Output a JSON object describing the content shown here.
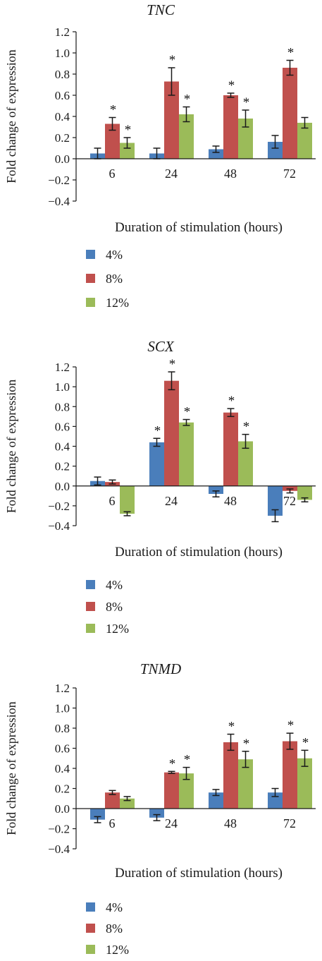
{
  "chart_data": [
    {
      "type": "bar",
      "title": "TNC",
      "xlabel": "Duration of stimulation (hours)",
      "ylabel": "Fold change of expression",
      "ylim": [
        -0.4,
        1.2
      ],
      "yticks": [
        "1.2",
        "1.0",
        "0.8",
        "0.6",
        "0.4",
        "0.2",
        "0.0",
        "−0.2",
        "−0.4"
      ],
      "categories": [
        "6",
        "24",
        "48",
        "72"
      ],
      "legend_position": "bottom-left",
      "series": [
        {
          "name": "4%",
          "color": "#4a7ebb",
          "values": [
            0.05,
            0.05,
            0.09,
            0.16
          ],
          "errors": [
            0.05,
            0.05,
            0.03,
            0.06
          ],
          "sig": [
            false,
            false,
            false,
            false
          ]
        },
        {
          "name": "8%",
          "color": "#c0504d",
          "values": [
            0.33,
            0.73,
            0.6,
            0.86
          ],
          "errors": [
            0.06,
            0.13,
            0.02,
            0.07
          ],
          "sig": [
            true,
            true,
            true,
            true
          ]
        },
        {
          "name": "12%",
          "color": "#9bbb59",
          "values": [
            0.15,
            0.42,
            0.38,
            0.34
          ],
          "errors": [
            0.05,
            0.07,
            0.08,
            0.05
          ],
          "sig": [
            true,
            true,
            true,
            false
          ]
        }
      ]
    },
    {
      "type": "bar",
      "title": "SCX",
      "xlabel": "Duration of stimulation (hours)",
      "ylabel": "Fold change of expression",
      "ylim": [
        -0.4,
        1.2
      ],
      "yticks": [
        "1.2",
        "1.0",
        "0.8",
        "0.6",
        "0.4",
        "0.2",
        "0.0",
        "−0.2",
        "−0.4"
      ],
      "categories": [
        "6",
        "24",
        "48",
        "72"
      ],
      "legend_position": "bottom-left",
      "series": [
        {
          "name": "4%",
          "color": "#4a7ebb",
          "values": [
            0.05,
            0.44,
            -0.08,
            -0.3
          ],
          "errors": [
            0.04,
            0.04,
            0.03,
            0.06
          ],
          "sig": [
            false,
            true,
            false,
            false
          ]
        },
        {
          "name": "8%",
          "color": "#c0504d",
          "values": [
            0.04,
            1.06,
            0.74,
            -0.05
          ],
          "errors": [
            0.02,
            0.09,
            0.04,
            0.02
          ],
          "sig": [
            false,
            true,
            true,
            false
          ]
        },
        {
          "name": "12%",
          "color": "#9bbb59",
          "values": [
            -0.28,
            0.64,
            0.45,
            -0.14
          ],
          "errors": [
            0.02,
            0.03,
            0.07,
            0.02
          ],
          "sig": [
            false,
            true,
            true,
            false
          ]
        }
      ]
    },
    {
      "type": "bar",
      "title": "TNMD",
      "xlabel": "Duration of stimulation (hours)",
      "ylabel": "Fold change of expression",
      "ylim": [
        -0.4,
        1.2
      ],
      "yticks": [
        "1.2",
        "1.0",
        "0.8",
        "0.6",
        "0.4",
        "0.2",
        "0.0",
        "−0.2",
        "−0.4"
      ],
      "categories": [
        "6",
        "24",
        "48",
        "72"
      ],
      "legend_position": "bottom-left",
      "series": [
        {
          "name": "4%",
          "color": "#4a7ebb",
          "values": [
            -0.11,
            -0.09,
            0.16,
            0.16
          ],
          "errors": [
            0.03,
            0.03,
            0.03,
            0.04
          ],
          "sig": [
            false,
            false,
            false,
            false
          ]
        },
        {
          "name": "8%",
          "color": "#c0504d",
          "values": [
            0.16,
            0.36,
            0.66,
            0.67
          ],
          "errors": [
            0.02,
            0.01,
            0.08,
            0.08
          ],
          "sig": [
            false,
            true,
            true,
            true
          ]
        },
        {
          "name": "12%",
          "color": "#9bbb59",
          "values": [
            0.1,
            0.35,
            0.49,
            0.5
          ],
          "errors": [
            0.02,
            0.06,
            0.08,
            0.08
          ],
          "sig": [
            false,
            true,
            true,
            true
          ]
        }
      ]
    }
  ],
  "significance_marker": "*"
}
